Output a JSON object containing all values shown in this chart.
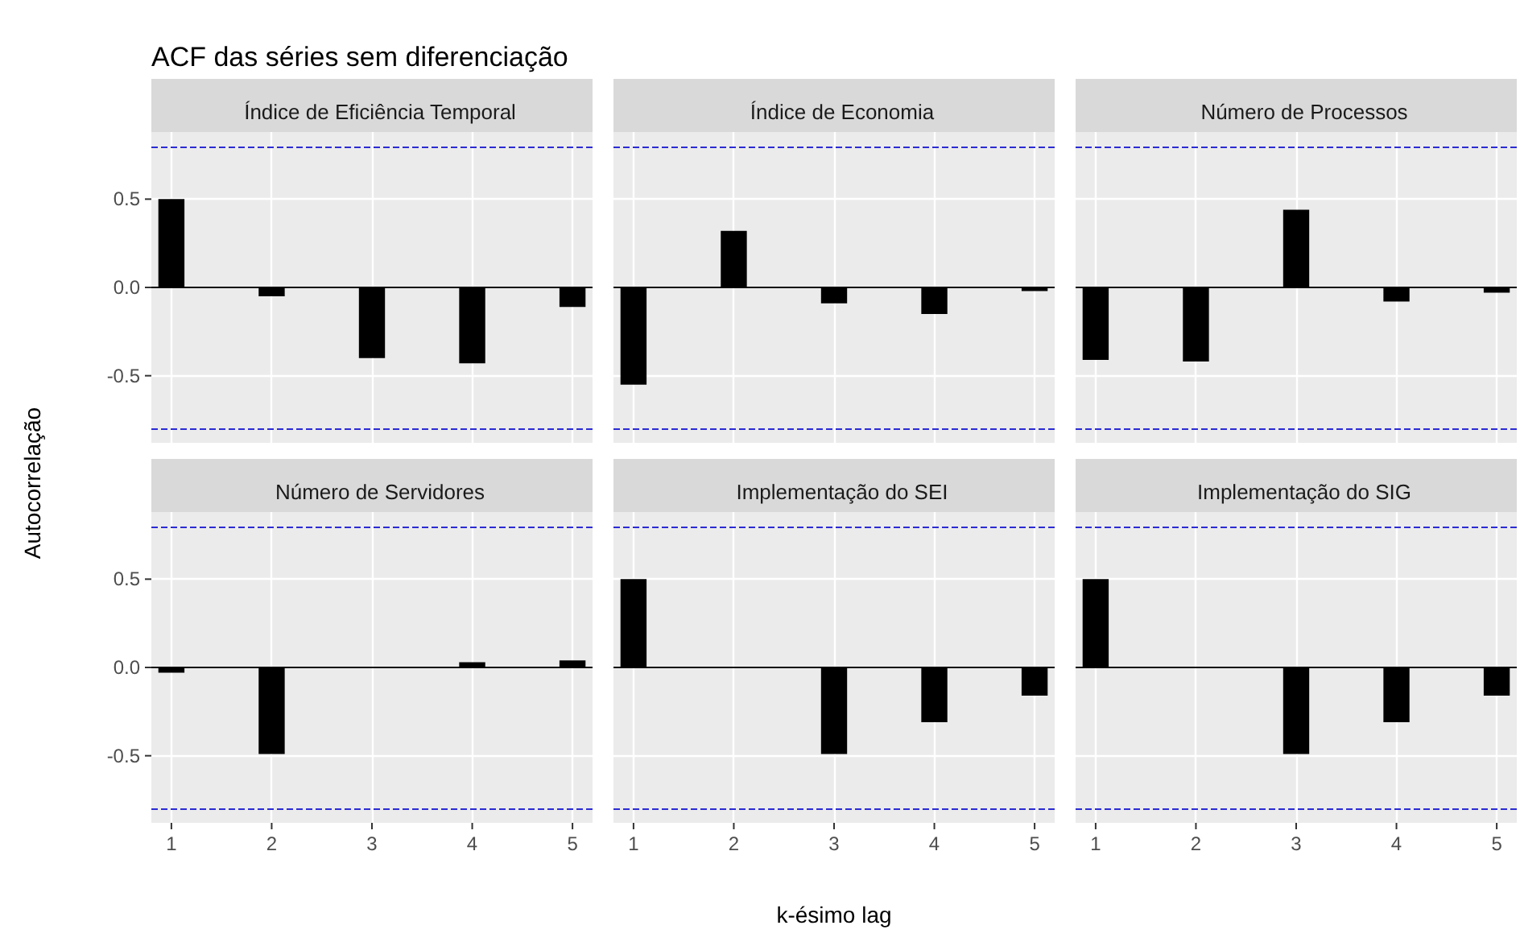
{
  "chart_data": [
    {
      "type": "bar",
      "title": "Índice de Eficiência Temporal",
      "ylabel": "Autocorrelação",
      "annotations": [
        "ACF das séries sem diferenciação"
      ],
      "x": [
        1,
        2,
        3,
        4,
        5
      ],
      "values": [
        0.5,
        -0.05,
        -0.4,
        -0.43,
        -0.11
      ],
      "color": "#000000",
      "xlim": [
        0.8,
        5.2
      ],
      "xticks": [
        1,
        2,
        3,
        4,
        5
      ],
      "ylim": [
        -0.88,
        0.88
      ],
      "yticks": [
        -0.5,
        {
          "value": 0,
          "label": "0.0"
        },
        0.5
      ],
      "grid": true,
      "tick_labels": "y",
      "ref_lines": [
        {
          "axis": "y",
          "value": 0.8,
          "color": "#2b2bd4",
          "line_style": "dashed"
        },
        {
          "axis": "y",
          "value": -0.8,
          "color": "#2b2bd4",
          "line_style": "dashed"
        },
        {
          "axis": "y",
          "value": 0,
          "color": "#000000",
          "line_style": "solid"
        }
      ]
    },
    {
      "type": "bar",
      "title": "Índice de Economia",
      "x": [
        1,
        2,
        3,
        4,
        5
      ],
      "values": [
        -0.55,
        0.32,
        -0.09,
        -0.15,
        -0.02
      ],
      "color": "#000000",
      "xlim": [
        0.8,
        5.2
      ],
      "xticks": [
        1,
        2,
        3,
        4,
        5
      ],
      "ylim": [
        -0.88,
        0.88
      ],
      "yticks": [
        -0.5,
        0,
        0.5
      ],
      "grid": true,
      "tick_labels": false,
      "ref_lines": [
        {
          "axis": "y",
          "value": 0.8,
          "color": "#2b2bd4",
          "line_style": "dashed"
        },
        {
          "axis": "y",
          "value": -0.8,
          "color": "#2b2bd4",
          "line_style": "dashed"
        },
        {
          "axis": "y",
          "value": 0,
          "color": "#000000",
          "line_style": "solid"
        }
      ]
    },
    {
      "type": "bar",
      "title": "Número de Processos",
      "x": [
        1,
        2,
        3,
        4,
        5
      ],
      "values": [
        -0.41,
        -0.42,
        0.44,
        -0.08,
        -0.03
      ],
      "color": "#000000",
      "xlim": [
        0.8,
        5.2
      ],
      "xticks": [
        1,
        2,
        3,
        4,
        5
      ],
      "ylim": [
        -0.88,
        0.88
      ],
      "yticks": [
        -0.5,
        0,
        0.5
      ],
      "grid": true,
      "tick_labels": false,
      "ref_lines": [
        {
          "axis": "y",
          "value": 0.8,
          "color": "#2b2bd4",
          "line_style": "dashed"
        },
        {
          "axis": "y",
          "value": -0.8,
          "color": "#2b2bd4",
          "line_style": "dashed"
        },
        {
          "axis": "y",
          "value": 0,
          "color": "#000000",
          "line_style": "solid"
        }
      ]
    },
    {
      "type": "bar",
      "title": "Número de Servidores",
      "x": [
        1,
        2,
        3,
        4,
        5
      ],
      "values": [
        -0.03,
        -0.49,
        0,
        0.03,
        0.04
      ],
      "color": "#000000",
      "xlim": [
        0.8,
        5.2
      ],
      "xticks": [
        1,
        2,
        3,
        4,
        5
      ],
      "ylim": [
        -0.88,
        0.88
      ],
      "yticks": [
        -0.5,
        {
          "value": 0,
          "label": "0.0"
        },
        0.5
      ],
      "grid": true,
      "ref_lines": [
        {
          "axis": "y",
          "value": 0.8,
          "color": "#2b2bd4",
          "line_style": "dashed"
        },
        {
          "axis": "y",
          "value": -0.8,
          "color": "#2b2bd4",
          "line_style": "dashed"
        },
        {
          "axis": "y",
          "value": 0,
          "color": "#000000",
          "line_style": "solid"
        }
      ]
    },
    {
      "type": "bar",
      "title": "Implementação do SEI",
      "xlabel": "k-ésimo lag",
      "x": [
        1,
        2,
        3,
        4,
        5
      ],
      "values": [
        0.5,
        0,
        -0.49,
        -0.31,
        -0.16
      ],
      "color": "#000000",
      "xlim": [
        0.8,
        5.2
      ],
      "xticks": [
        1,
        2,
        3,
        4,
        5
      ],
      "ylim": [
        -0.88,
        0.88
      ],
      "yticks": [
        -0.5,
        0,
        0.5
      ],
      "grid": true,
      "tick_labels": "x",
      "ref_lines": [
        {
          "axis": "y",
          "value": 0.8,
          "color": "#2b2bd4",
          "line_style": "dashed"
        },
        {
          "axis": "y",
          "value": -0.8,
          "color": "#2b2bd4",
          "line_style": "dashed"
        },
        {
          "axis": "y",
          "value": 0,
          "color": "#000000",
          "line_style": "solid"
        }
      ]
    },
    {
      "type": "bar",
      "title": "Implementação do SIG",
      "x": [
        1,
        2,
        3,
        4,
        5
      ],
      "values": [
        0.5,
        0,
        -0.49,
        -0.31,
        -0.16
      ],
      "color": "#000000",
      "xlim": [
        0.8,
        5.2
      ],
      "xticks": [
        1,
        2,
        3,
        4,
        5
      ],
      "ylim": [
        -0.88,
        0.88
      ],
      "yticks": [
        -0.5,
        0,
        0.5
      ],
      "grid": true,
      "tick_labels": "x",
      "ref_lines": [
        {
          "axis": "y",
          "value": 0.8,
          "color": "#2b2bd4",
          "line_style": "dashed"
        },
        {
          "axis": "y",
          "value": -0.8,
          "color": "#2b2bd4",
          "line_style": "dashed"
        },
        {
          "axis": "y",
          "value": 0,
          "color": "#000000",
          "line_style": "solid"
        }
      ]
    }
  ]
}
